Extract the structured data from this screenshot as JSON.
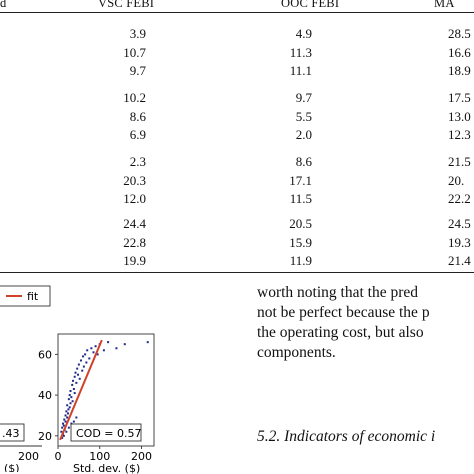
{
  "table": {
    "columns": [
      "d",
      "VSC FEBI",
      "OOC FEBI",
      "MA"
    ],
    "groups": [
      [
        [
          "3.9",
          "4.9",
          "28.5"
        ],
        [
          "10.7",
          "11.3",
          "16.6"
        ],
        [
          "9.7",
          "11.1",
          "18.9"
        ]
      ],
      [
        [
          "10.2",
          "9.7",
          "17.5"
        ],
        [
          "8.6",
          "5.5",
          "13.0"
        ],
        [
          "6.9",
          "2.0",
          "12.3"
        ]
      ],
      [
        [
          "2.3",
          "8.6",
          "21.5"
        ],
        [
          "20.3",
          "17.1",
          "20."
        ],
        [
          "12.0",
          "11.5",
          "22.2"
        ]
      ],
      [
        [
          "24.4",
          "20.5",
          "24.5"
        ],
        [
          "22.8",
          "15.9",
          "19.3"
        ],
        [
          "19.9",
          "11.9",
          "21.4"
        ]
      ]
    ]
  },
  "chart_data": [
    {
      "type": "scatter",
      "partial": "left",
      "legend": [
        "fit"
      ],
      "annotation": ".43",
      "xlabel": "($)",
      "x_ticks": [
        "200"
      ],
      "colors": {
        "fit": "#d0412a",
        "points": "#1f2a8a"
      }
    },
    {
      "type": "scatter",
      "xlabel": "Std. dev. ($)",
      "x_ticks": [
        "0",
        "100",
        "200"
      ],
      "y_ticks": [
        "20",
        "40",
        "60"
      ],
      "xlim": [
        0,
        230
      ],
      "ylim": [
        15,
        70
      ],
      "annotation": "COD = 0.57",
      "points": [
        [
          8,
          22
        ],
        [
          10,
          24
        ],
        [
          12,
          21
        ],
        [
          12,
          26
        ],
        [
          14,
          25
        ],
        [
          15,
          28
        ],
        [
          16,
          23
        ],
        [
          18,
          30
        ],
        [
          18,
          27
        ],
        [
          20,
          32
        ],
        [
          22,
          29
        ],
        [
          22,
          35
        ],
        [
          24,
          31
        ],
        [
          25,
          33
        ],
        [
          26,
          38
        ],
        [
          28,
          34
        ],
        [
          28,
          40
        ],
        [
          30,
          36
        ],
        [
          30,
          42
        ],
        [
          32,
          39
        ],
        [
          34,
          45
        ],
        [
          35,
          37
        ],
        [
          36,
          47
        ],
        [
          38,
          43
        ],
        [
          40,
          49
        ],
        [
          40,
          41
        ],
        [
          42,
          51
        ],
        [
          44,
          46
        ],
        [
          46,
          53
        ],
        [
          48,
          50
        ],
        [
          50,
          55
        ],
        [
          52,
          48
        ],
        [
          55,
          57
        ],
        [
          58,
          52
        ],
        [
          60,
          59
        ],
        [
          62,
          54
        ],
        [
          65,
          60
        ],
        [
          68,
          56
        ],
        [
          70,
          62
        ],
        [
          75,
          58
        ],
        [
          80,
          63
        ],
        [
          85,
          61
        ],
        [
          90,
          64
        ],
        [
          95,
          60
        ],
        [
          100,
          65
        ],
        [
          110,
          62
        ],
        [
          120,
          66
        ],
        [
          140,
          63
        ],
        [
          160,
          65
        ],
        [
          215,
          66
        ],
        [
          10,
          19
        ],
        [
          14,
          20
        ],
        [
          20,
          22
        ],
        [
          26,
          24
        ],
        [
          32,
          26
        ],
        [
          38,
          27
        ],
        [
          44,
          29
        ]
      ],
      "fit": [
        [
          5,
          18
        ],
        [
          105,
          67
        ]
      ],
      "colors": {
        "fit": "#d0412a",
        "points": "#1f2a8a"
      }
    }
  ],
  "text": {
    "lines": [
      "worth noting that the pred",
      "not be perfect because the p",
      "the operating cost, but also",
      "components."
    ],
    "section": "5.2.  Indicators of economic i"
  }
}
